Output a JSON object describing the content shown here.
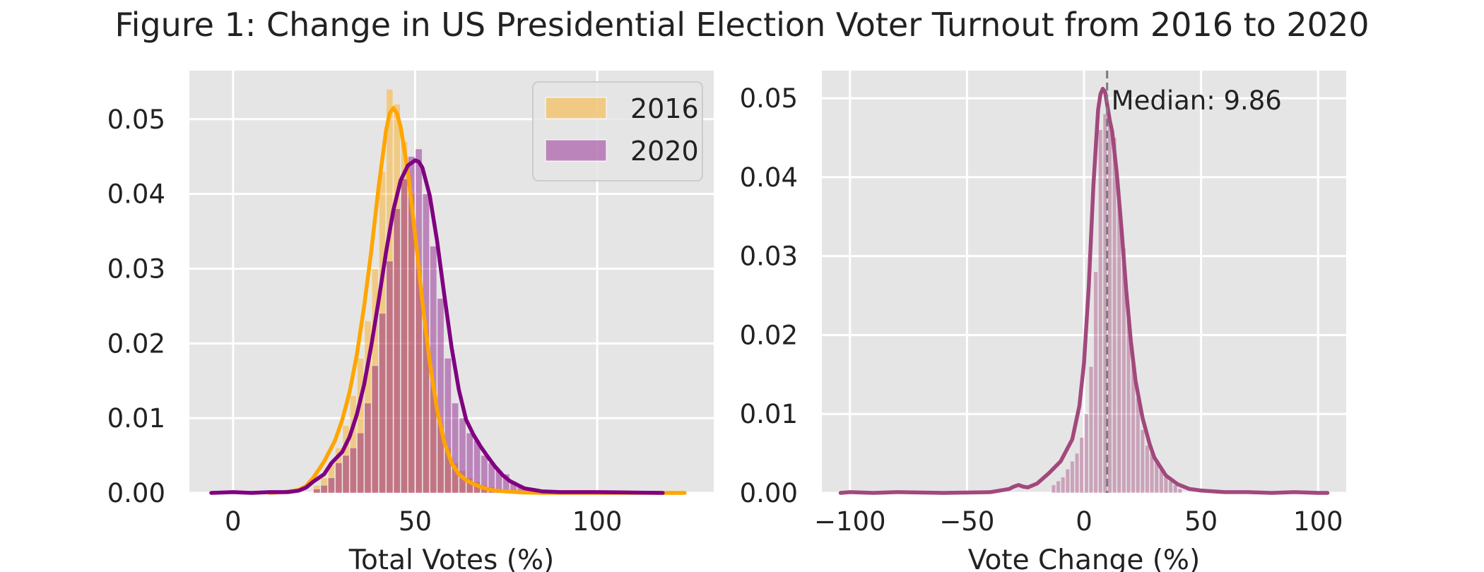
{
  "figure": {
    "title": "Figure 1: Change in US Presidential Election Voter Turnout from 2016 to 2020"
  },
  "chart_data": [
    {
      "type": "histogram+kde",
      "xlabel": "Total Votes (%)",
      "ylabel": "",
      "xlim": [
        -12,
        132
      ],
      "ylim": [
        0,
        0.0565
      ],
      "xticks": [
        0,
        50,
        100
      ],
      "yticks": [
        0,
        0.01,
        0.02,
        0.03,
        0.04,
        0.05
      ],
      "ytick_labels": [
        "0.00",
        "0.01",
        "0.02",
        "0.03",
        "0.04",
        "0.05"
      ],
      "grid": true,
      "legend": {
        "placement": "top-right",
        "entries": [
          "2016",
          "2020"
        ]
      },
      "bin_width": 2,
      "series": [
        {
          "name": "2016",
          "color": "#ffa500",
          "bins": {
            "start": [
              22,
              24,
              26,
              28,
              30,
              32,
              34,
              36,
              38,
              40,
              42,
              44,
              46,
              48,
              50,
              52,
              54,
              56,
              58,
              60,
              62,
              64,
              66,
              68,
              70,
              72,
              74,
              76
            ],
            "density": [
              0.001,
              0.002,
              0.004,
              0.006,
              0.009,
              0.013,
              0.018,
              0.023,
              0.03,
              0.043,
              0.054,
              0.052,
              0.047,
              0.04,
              0.03,
              0.022,
              0.014,
              0.009,
              0.006,
              0.004,
              0.003,
              0.002,
              0.0015,
              0.001,
              0.0008,
              0.0005,
              0.0003,
              0.0002
            ]
          },
          "kde": {
            "x": [
              10,
              14,
              18,
              20,
              22,
              25,
              28,
              30,
              32,
              34,
              36,
              38,
              40,
              42,
              43,
              44,
              45,
              46,
              48,
              50,
              52,
              54,
              56,
              58,
              60,
              62,
              64,
              66,
              68,
              70,
              72,
              75,
              78,
              80,
              85,
              90,
              100,
              110,
              120,
              124
            ],
            "y": [
              0,
              0.0001,
              0.0004,
              0.0009,
              0.002,
              0.0042,
              0.007,
              0.0098,
              0.0135,
              0.0185,
              0.025,
              0.0325,
              0.041,
              0.0485,
              0.0508,
              0.0515,
              0.0508,
              0.049,
              0.043,
              0.0345,
              0.0255,
              0.0175,
              0.0112,
              0.0068,
              0.004,
              0.0025,
              0.0017,
              0.0012,
              0.0008,
              0.0005,
              0.0003,
              0.0002,
              0.0001,
              5e-05,
              0,
              0,
              0,
              0,
              0,
              0
            ]
          }
        },
        {
          "name": "2020",
          "color": "#800080",
          "bins": {
            "start": [
              22,
              24,
              26,
              28,
              30,
              32,
              34,
              36,
              38,
              40,
              42,
              44,
              46,
              48,
              50,
              52,
              54,
              56,
              58,
              60,
              62,
              64,
              66,
              68,
              70,
              72,
              74,
              76,
              78,
              80
            ],
            "density": [
              0.0005,
              0.001,
              0.002,
              0.004,
              0.005,
              0.006,
              0.008,
              0.012,
              0.017,
              0.024,
              0.031,
              0.038,
              0.042,
              0.045,
              0.046,
              0.04,
              0.033,
              0.026,
              0.018,
              0.012,
              0.01,
              0.008,
              0.007,
              0.005,
              0.004,
              0.003,
              0.0025,
              0.0015,
              0.001,
              0.0005
            ]
          },
          "kde": {
            "x": [
              -6,
              0,
              5,
              10,
              15,
              18,
              20,
              22,
              25,
              27,
              28,
              30,
              32,
              34,
              36,
              38,
              40,
              42,
              44,
              46,
              48,
              50,
              51,
              52,
              54,
              56,
              58,
              60,
              62,
              64,
              66,
              68,
              70,
              72,
              74,
              76,
              78,
              80,
              85,
              90,
              100,
              110,
              118
            ],
            "y": [
              0,
              0.0001,
              0,
              0.0001,
              0.0001,
              0.0003,
              0.0007,
              0.0015,
              0.0025,
              0.004,
              0.0045,
              0.0055,
              0.0075,
              0.0105,
              0.0145,
              0.0198,
              0.0258,
              0.0322,
              0.0378,
              0.0418,
              0.0438,
              0.0445,
              0.0443,
              0.0435,
              0.0398,
              0.0338,
              0.0265,
              0.0195,
              0.0138,
              0.0098,
              0.0078,
              0.0062,
              0.0048,
              0.0035,
              0.0024,
              0.0016,
              0.0011,
              0.0006,
              0.0002,
              0.0001,
              0.0001,
              5e-05,
              0
            ]
          }
        }
      ]
    },
    {
      "type": "histogram+kde",
      "xlabel": "Vote Change (%)",
      "ylabel": "",
      "xlim": [
        -112,
        112
      ],
      "ylim": [
        0,
        0.0535
      ],
      "xticks": [
        -100,
        -50,
        0,
        50,
        100
      ],
      "xtick_labels": [
        "−100",
        "−50",
        "0",
        "50",
        "100"
      ],
      "yticks": [
        0,
        0.01,
        0.02,
        0.03,
        0.04,
        0.05
      ],
      "ytick_labels": [
        "0.00",
        "0.01",
        "0.02",
        "0.03",
        "0.04",
        "0.05"
      ],
      "grid": true,
      "median": {
        "value": 9.86,
        "label": "Median: 9.86"
      },
      "series": [
        {
          "color": "#a2487c",
          "bins": {
            "start": [
              -14,
              -12,
              -10,
              -8,
              -6,
              -4,
              -2,
              0,
              2,
              4,
              6,
              8,
              10,
              12,
              14,
              16,
              18,
              20,
              22,
              24,
              26,
              28,
              30,
              32,
              34,
              36,
              38,
              40
            ],
            "density": [
              0.001,
              0.0015,
              0.002,
              0.003,
              0.004,
              0.005,
              0.007,
              0.01,
              0.016,
              0.028,
              0.046,
              0.048,
              0.047,
              0.045,
              0.037,
              0.031,
              0.022,
              0.017,
              0.012,
              0.008,
              0.006,
              0.005,
              0.004,
              0.003,
              0.002,
              0.0015,
              0.001,
              0.0005
            ]
          },
          "kde": {
            "x": [
              -104,
              -100,
              -90,
              -80,
              -60,
              -40,
              -32,
              -30,
              -28,
              -26,
              -24,
              -20,
              -15,
              -10,
              -5,
              -2,
              0,
              2,
              4,
              6,
              7,
              8,
              9,
              10,
              11,
              12,
              14,
              16,
              18,
              20,
              22,
              25,
              28,
              30,
              35,
              40,
              45,
              50,
              60,
              70,
              80,
              90,
              100,
              104
            ],
            "y": [
              0,
              0.0001,
              0,
              0.0001,
              0,
              0.0001,
              0.0005,
              0.0008,
              0.001,
              0.0008,
              0.0007,
              0.0012,
              0.0025,
              0.004,
              0.0068,
              0.011,
              0.0165,
              0.026,
              0.039,
              0.0485,
              0.0505,
              0.0512,
              0.0508,
              0.049,
              0.0472,
              0.0458,
              0.0405,
              0.0335,
              0.0258,
              0.0192,
              0.0142,
              0.0095,
              0.0062,
              0.0045,
              0.0022,
              0.0011,
              0.0005,
              0.0003,
              0.0001,
              0.0001,
              0,
              0.0001,
              0,
              0
            ]
          }
        }
      ]
    }
  ]
}
